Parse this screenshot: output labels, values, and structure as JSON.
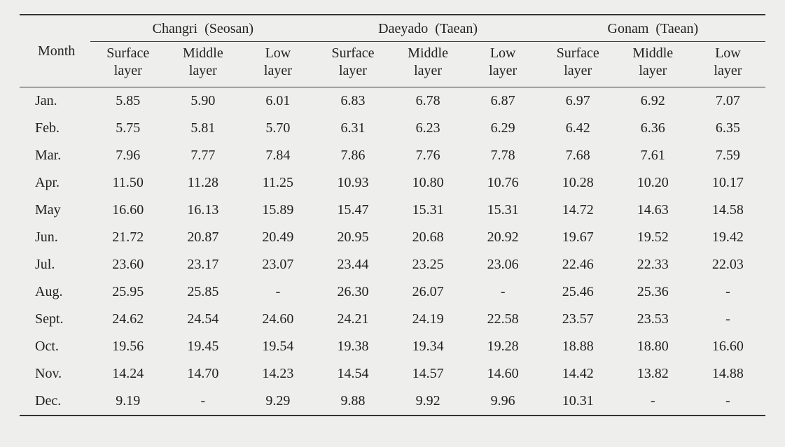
{
  "header": {
    "month_label": "Month",
    "locations": [
      {
        "name": "Changri",
        "region": "(Seosan)"
      },
      {
        "name": "Daeyado",
        "region": "(Taean)"
      },
      {
        "name": "Gonam",
        "region": "(Taean)"
      }
    ],
    "sublayers": [
      "Surface layer",
      "Middle layer",
      "Low layer"
    ]
  },
  "rows": [
    {
      "month": "Jan.",
      "v": [
        "5.85",
        "5.90",
        "6.01",
        "6.83",
        "6.78",
        "6.87",
        "6.97",
        "6.92",
        "7.07"
      ]
    },
    {
      "month": "Feb.",
      "v": [
        "5.75",
        "5.81",
        "5.70",
        "6.31",
        "6.23",
        "6.29",
        "6.42",
        "6.36",
        "6.35"
      ]
    },
    {
      "month": "Mar.",
      "v": [
        "7.96",
        "7.77",
        "7.84",
        "7.86",
        "7.76",
        "7.78",
        "7.68",
        "7.61",
        "7.59"
      ]
    },
    {
      "month": "Apr.",
      "v": [
        "11.50",
        "11.28",
        "11.25",
        "10.93",
        "10.80",
        "10.76",
        "10.28",
        "10.20",
        "10.17"
      ]
    },
    {
      "month": "May",
      "v": [
        "16.60",
        "16.13",
        "15.89",
        "15.47",
        "15.31",
        "15.31",
        "14.72",
        "14.63",
        "14.58"
      ]
    },
    {
      "month": "Jun.",
      "v": [
        "21.72",
        "20.87",
        "20.49",
        "20.95",
        "20.68",
        "20.92",
        "19.67",
        "19.52",
        "19.42"
      ]
    },
    {
      "month": "Jul.",
      "v": [
        "23.60",
        "23.17",
        "23.07",
        "23.44",
        "23.25",
        "23.06",
        "22.46",
        "22.33",
        "22.03"
      ]
    },
    {
      "month": "Aug.",
      "v": [
        "25.95",
        "25.85",
        "-",
        "26.30",
        "26.07",
        "-",
        "25.46",
        "25.36",
        "-"
      ]
    },
    {
      "month": "Sept.",
      "v": [
        "24.62",
        "24.54",
        "24.60",
        "24.21",
        "24.19",
        "22.58",
        "23.57",
        "23.53",
        "-"
      ]
    },
    {
      "month": "Oct.",
      "v": [
        "19.56",
        "19.45",
        "19.54",
        "19.38",
        "19.34",
        "19.28",
        "18.88",
        "18.80",
        "16.60"
      ]
    },
    {
      "month": "Nov.",
      "v": [
        "14.24",
        "14.70",
        "14.23",
        "14.54",
        "14.57",
        "14.60",
        "14.42",
        "13.82",
        "14.88"
      ]
    },
    {
      "month": "Dec.",
      "v": [
        "9.19",
        "-",
        "9.29",
        "9.88",
        "9.92",
        "9.96",
        "10.31",
        "-",
        "-"
      ]
    }
  ],
  "style": {
    "background": "#eeeeec",
    "rule_color": "#333333",
    "font_family": "Times New Roman",
    "header_fontsize_pt": 15,
    "body_fontsize_pt": 15
  }
}
